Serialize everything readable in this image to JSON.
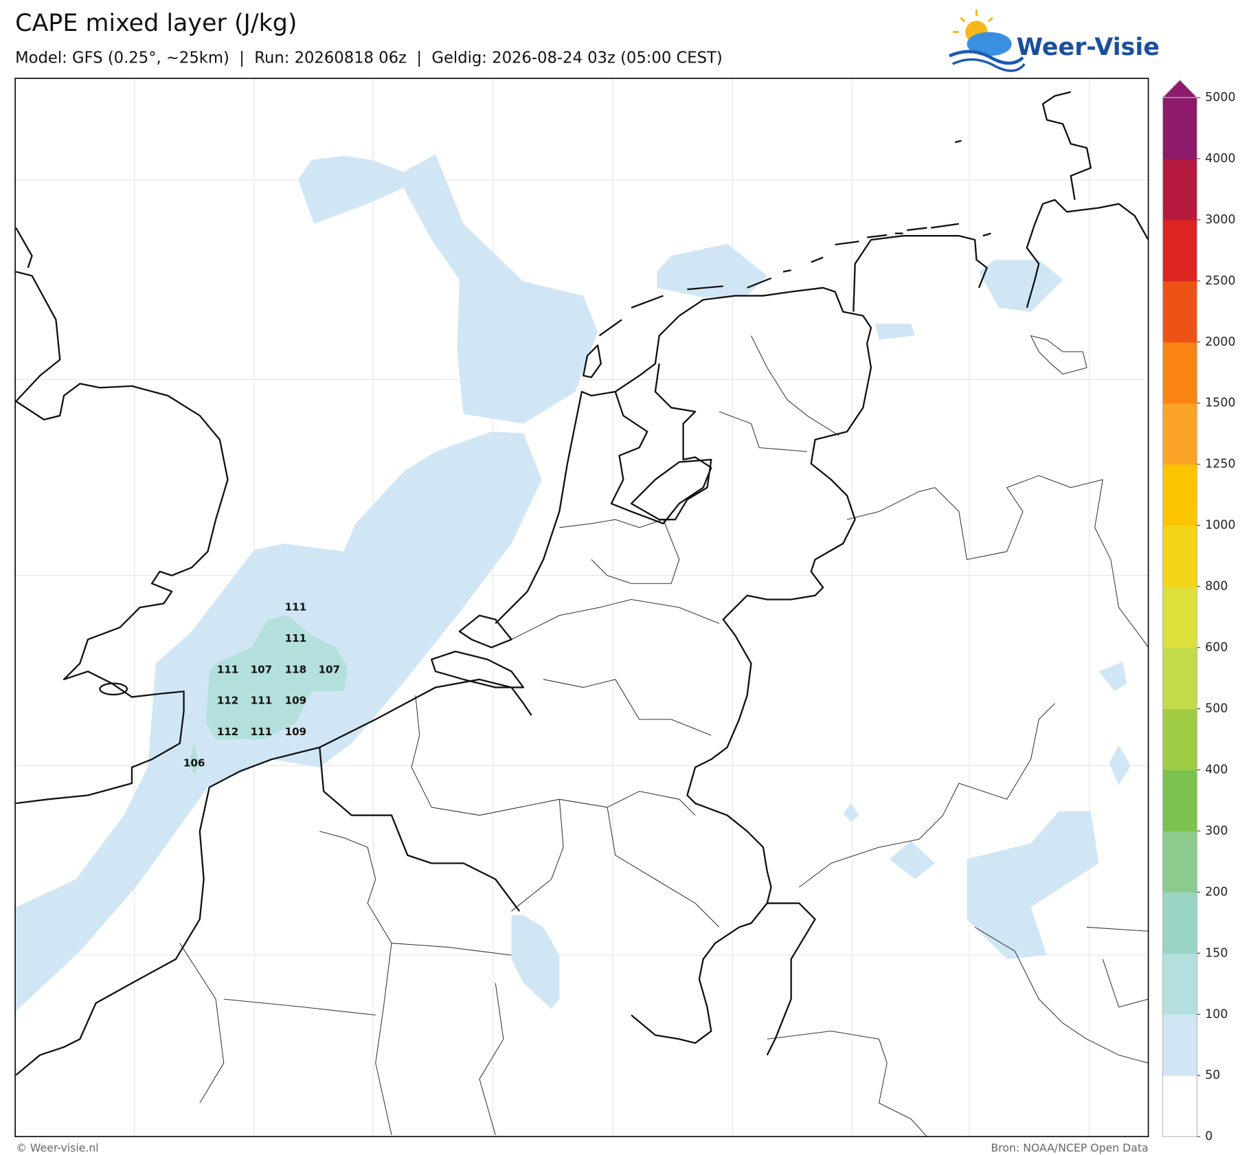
{
  "header": {
    "title": "CAPE mixed layer (J/kg)",
    "subtitle": "Model: GFS (0.25°, ~25km)  |  Run: 20260818 06z  |  Geldig: 2026-08-24 03z (05:00 CEST)",
    "logo": "Weer-Visie"
  },
  "map": {
    "labels": [
      111,
      111,
      111,
      107,
      118,
      107,
      112,
      111,
      109,
      112,
      111,
      109,
      106
    ]
  },
  "colorbar": {
    "ticks": [
      0,
      50,
      100,
      150,
      200,
      300,
      400,
      500,
      600,
      800,
      1000,
      1250,
      1500,
      2000,
      2500,
      3000,
      4000,
      5000
    ],
    "colors": [
      "#ffffff",
      "#d0e6f5",
      "#b3e0de",
      "#98d5c7",
      "#8ccb8b",
      "#7cc24f",
      "#9fcc44",
      "#c3db49",
      "#dde03b",
      "#f3d517",
      "#fbc400",
      "#fba427",
      "#f98413",
      "#ee5316",
      "#dc2420",
      "#b5193e",
      "#8d1a6a"
    ]
  },
  "footer": {
    "credit": "© Weer-visie.nl",
    "source": "Bron: NOAA/NCEP Open Data"
  }
}
